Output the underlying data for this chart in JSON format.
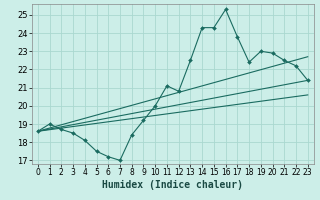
{
  "title": "",
  "xlabel": "Humidex (Indice chaleur)",
  "bg_color": "#cceee8",
  "grid_color": "#aad8d0",
  "line_color": "#1a6b60",
  "xlim": [
    -0.5,
    23.5
  ],
  "ylim": [
    16.8,
    25.6
  ],
  "xticks": [
    0,
    1,
    2,
    3,
    4,
    5,
    6,
    7,
    8,
    9,
    10,
    11,
    12,
    13,
    14,
    15,
    16,
    17,
    18,
    19,
    20,
    21,
    22,
    23
  ],
  "yticks": [
    17,
    18,
    19,
    20,
    21,
    22,
    23,
    24,
    25
  ],
  "series1_x": [
    0,
    1,
    2,
    3,
    4,
    5,
    6,
    7,
    8,
    9,
    10,
    11,
    12,
    13,
    14,
    15,
    16,
    17,
    18,
    19,
    20,
    21,
    22,
    23
  ],
  "series1_y": [
    18.6,
    19.0,
    18.7,
    18.5,
    18.1,
    17.5,
    17.2,
    17.0,
    18.4,
    19.2,
    20.0,
    21.1,
    20.8,
    22.5,
    24.3,
    24.3,
    25.3,
    23.8,
    22.4,
    23.0,
    22.9,
    22.5,
    22.2,
    21.4
  ],
  "series2_x": [
    0,
    23
  ],
  "series2_y": [
    18.6,
    22.7
  ],
  "series3_x": [
    0,
    23
  ],
  "series3_y": [
    18.6,
    21.4
  ],
  "series4_x": [
    0,
    23
  ],
  "series4_y": [
    18.6,
    20.6
  ]
}
